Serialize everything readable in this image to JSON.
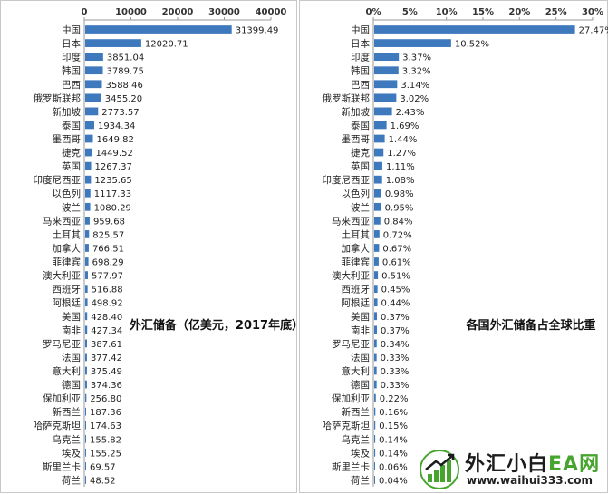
{
  "chart_data": [
    {
      "type": "bar",
      "orientation": "horizontal",
      "title": "外汇储备（亿美元，2017年底）",
      "xlim": [
        0,
        40000
      ],
      "ticks": [
        "0",
        "10000",
        "20000",
        "30000",
        "40000"
      ],
      "tick_values": [
        0,
        10000,
        20000,
        30000,
        40000
      ],
      "categories": [
        "中国",
        "日本",
        "印度",
        "韩国",
        "巴西",
        "俄罗斯联邦",
        "新加坡",
        "泰国",
        "墨西哥",
        "捷克",
        "英国",
        "印度尼西亚",
        "以色列",
        "波兰",
        "马来西亚",
        "土耳其",
        "加拿大",
        "菲律宾",
        "澳大利亚",
        "西班牙",
        "阿根廷",
        "美国",
        "南非",
        "罗马尼亚",
        "法国",
        "意大利",
        "德国",
        "保加利亚",
        "新西兰",
        "哈萨克斯坦",
        "乌克兰",
        "埃及",
        "斯里兰卡",
        "荷兰"
      ],
      "values": [
        31399.49,
        12020.71,
        3851.04,
        3789.75,
        3588.46,
        3455.2,
        2773.57,
        1934.34,
        1649.82,
        1449.52,
        1267.37,
        1235.65,
        1117.33,
        1080.29,
        959.68,
        825.57,
        766.51,
        698.29,
        577.97,
        516.88,
        498.92,
        428.4,
        427.34,
        387.61,
        377.42,
        375.49,
        374.36,
        256.8,
        187.36,
        174.63,
        155.82,
        155.25,
        69.57,
        48.52
      ],
      "value_labels": [
        "31399.49",
        "12020.71",
        "3851.04",
        "3789.75",
        "3588.46",
        "3455.20",
        "2773.57",
        "1934.34",
        "1649.82",
        "1449.52",
        "1267.37",
        "1235.65",
        "1117.33",
        "1080.29",
        "959.68",
        "825.57",
        "766.51",
        "698.29",
        "577.97",
        "516.88",
        "498.92",
        "428.40",
        "427.34",
        "387.61",
        "377.42",
        "375.49",
        "374.36",
        "256.80",
        "187.36",
        "174.63",
        "155.82",
        "155.25",
        "69.57",
        "48.52"
      ],
      "color": "#3e78bd",
      "grid": false,
      "axis_position": "top"
    },
    {
      "type": "bar",
      "orientation": "horizontal",
      "title": "各国外汇储备占全球比重",
      "xlim": [
        0,
        30
      ],
      "ticks": [
        "0%",
        "5%",
        "10%",
        "15%",
        "20%",
        "25%",
        "30%"
      ],
      "tick_values": [
        0,
        5,
        10,
        15,
        20,
        25,
        30
      ],
      "categories": [
        "中国",
        "日本",
        "印度",
        "韩国",
        "巴西",
        "俄罗斯联邦",
        "新加坡",
        "泰国",
        "墨西哥",
        "捷克",
        "英国",
        "印度尼西亚",
        "以色列",
        "波兰",
        "马来西亚",
        "土耳其",
        "加拿大",
        "菲律宾",
        "澳大利亚",
        "西班牙",
        "阿根廷",
        "美国",
        "南非",
        "罗马尼亚",
        "法国",
        "意大利",
        "德国",
        "保加利亚",
        "新西兰",
        "哈萨克斯坦",
        "乌克兰",
        "埃及",
        "斯里兰卡",
        "荷兰"
      ],
      "values": [
        27.47,
        10.52,
        3.37,
        3.32,
        3.14,
        3.02,
        2.43,
        1.69,
        1.44,
        1.27,
        1.11,
        1.08,
        0.98,
        0.95,
        0.84,
        0.72,
        0.67,
        0.61,
        0.51,
        0.45,
        0.44,
        0.37,
        0.37,
        0.34,
        0.33,
        0.33,
        0.33,
        0.22,
        0.16,
        0.15,
        0.14,
        0.14,
        0.06,
        0.04
      ],
      "value_labels": [
        "27.47%",
        "10.52%",
        "3.37%",
        "3.32%",
        "3.14%",
        "3.02%",
        "2.43%",
        "1.69%",
        "1.44%",
        "1.27%",
        "1.11%",
        "1.08%",
        "0.98%",
        "0.95%",
        "0.84%",
        "0.72%",
        "0.67%",
        "0.61%",
        "0.51%",
        "0.45%",
        "0.44%",
        "0.37%",
        "0.37%",
        "0.34%",
        "0.33%",
        "0.33%",
        "0.33%",
        "0.22%",
        "0.16%",
        "0.15%",
        "0.14%",
        "0.14%",
        "0.06%",
        "0.04%"
      ],
      "color": "#3e78bd",
      "grid": false,
      "axis_position": "top"
    }
  ],
  "watermark": {
    "brand_main": "外汇小白",
    "brand_ea": "EA网",
    "url": "www.waihui333.com",
    "colors": {
      "green": "#47a52f",
      "dark": "#1c1c1c"
    },
    "icon": "bar-chart-arrow-logo-icon"
  }
}
